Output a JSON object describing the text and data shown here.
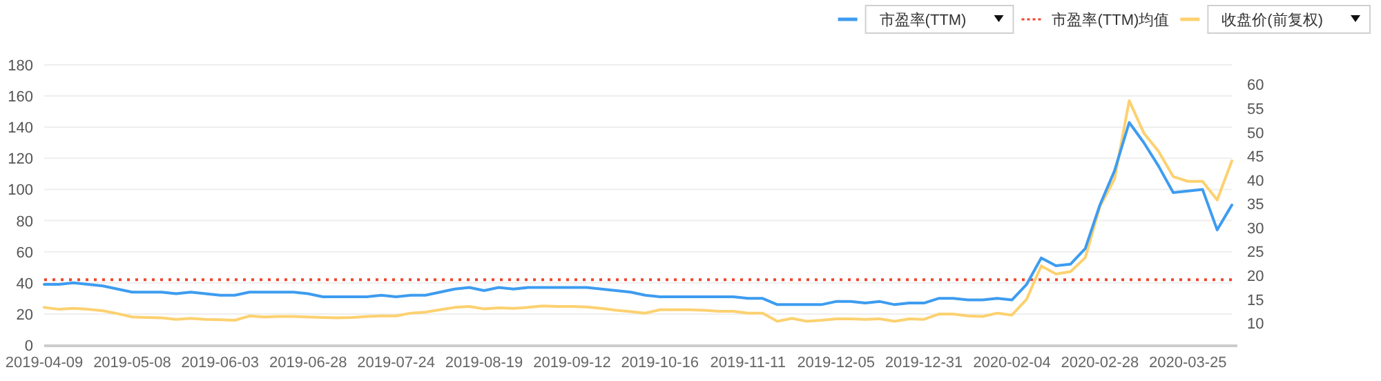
{
  "chart_data": {
    "type": "line",
    "categories": [
      "2019-04-09",
      null,
      null,
      null,
      null,
      null,
      "2019-05-08",
      null,
      null,
      null,
      null,
      null,
      "2019-06-03",
      null,
      null,
      null,
      null,
      null,
      "2019-06-28",
      null,
      null,
      null,
      null,
      null,
      "2019-07-24",
      null,
      null,
      null,
      null,
      null,
      "2019-08-19",
      null,
      null,
      null,
      null,
      null,
      "2019-09-12",
      null,
      null,
      null,
      null,
      null,
      "2019-10-16",
      null,
      null,
      null,
      null,
      null,
      "2019-11-11",
      null,
      null,
      null,
      null,
      null,
      "2019-12-05",
      null,
      null,
      null,
      null,
      null,
      "2019-12-31",
      null,
      null,
      null,
      null,
      null,
      "2020-02-04",
      null,
      null,
      null,
      null,
      null,
      "2020-02-28",
      null,
      null,
      null,
      null,
      null,
      "2020-03-25",
      null,
      null,
      null
    ],
    "series": [
      {
        "name": "市盈率(TTM)",
        "color": "#3d9cf0",
        "values": [
          39,
          39,
          40,
          39,
          38,
          36,
          34,
          34,
          34,
          33,
          34,
          33,
          32,
          32,
          34,
          34,
          34,
          34,
          33,
          31,
          31,
          31,
          31,
          32,
          31,
          32,
          32,
          34,
          36,
          37,
          35,
          37,
          36,
          37,
          37,
          37,
          37,
          37,
          36,
          35,
          34,
          32,
          31,
          31,
          31,
          31,
          31,
          31,
          30,
          30,
          26,
          26,
          26,
          26,
          28,
          28,
          27,
          28,
          26,
          27,
          27,
          30,
          30,
          29,
          29,
          30,
          29,
          39,
          56,
          51,
          52,
          62,
          90,
          112,
          143,
          130,
          115,
          98,
          99,
          100,
          74,
          90
        ]
      },
      {
        "name": "收盘价(前复权)",
        "color": "#fcd170",
        "axis": "y2",
        "values": [
          13.3,
          12.9,
          13.1,
          12.9,
          12.6,
          12.0,
          11.3,
          11.2,
          11.1,
          10.8,
          11.0,
          10.8,
          10.7,
          10.6,
          11.5,
          11.3,
          11.4,
          11.4,
          11.3,
          11.2,
          11.1,
          11.2,
          11.4,
          11.5,
          11.5,
          12.1,
          12.3,
          12.8,
          13.3,
          13.5,
          13.0,
          13.2,
          13.1,
          13.3,
          13.6,
          13.5,
          13.5,
          13.4,
          13.1,
          12.7,
          12.4,
          12.1,
          12.8,
          12.8,
          12.8,
          12.7,
          12.5,
          12.5,
          12.1,
          12.1,
          10.4,
          11.0,
          10.4,
          10.6,
          10.9,
          10.9,
          10.8,
          10.9,
          10.4,
          10.9,
          10.8,
          11.9,
          11.9,
          11.5,
          11.4,
          12.1,
          11.7,
          15.0,
          22.0,
          20.3,
          20.8,
          23.7,
          34.4,
          40.2,
          56.6,
          49.8,
          46.0,
          40.7,
          39.7,
          39.7,
          35.8,
          44
        ]
      }
    ],
    "ylim": [
      0,
      180
    ],
    "yticks": [
      0,
      20,
      40,
      60,
      80,
      100,
      120,
      140,
      160,
      180
    ],
    "y2lim": [
      5.4,
      64.1
    ],
    "y2ticks": [
      10,
      15,
      20,
      25,
      30,
      35,
      40,
      45,
      50,
      55,
      60
    ],
    "ref_lines": [
      {
        "axis": "y",
        "value": 42,
        "label": "市盈率(TTM)均值",
        "color": "#f0442c",
        "line_style": "dotted"
      }
    ],
    "grid": "y",
    "legend": "top right"
  }
}
